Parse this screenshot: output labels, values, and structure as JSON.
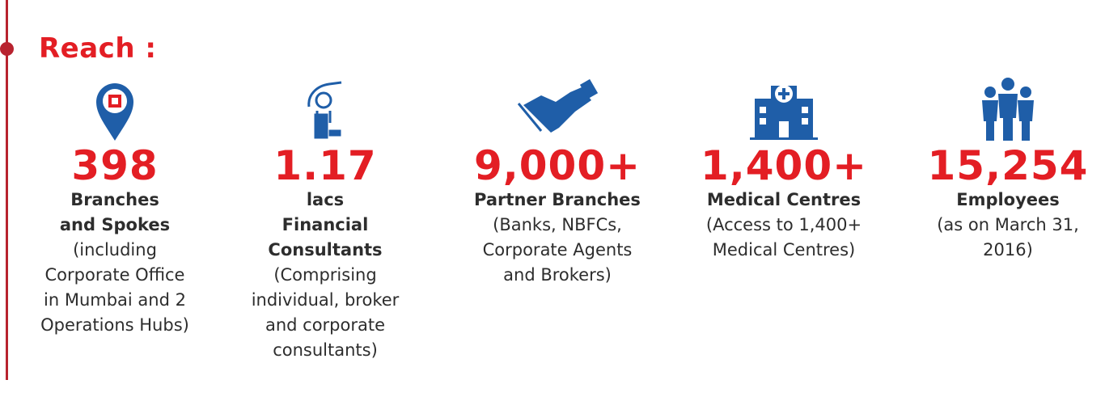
{
  "title": "Reach :",
  "items": [
    {
      "value": "398",
      "label": [
        "Branches",
        "and Spokes"
      ],
      "note": [
        "(including",
        "Corporate Office",
        "in Mumbai and 2",
        "Operations Hubs)"
      ]
    },
    {
      "value": "1.17",
      "label": [
        "lacs",
        "Financial",
        "Consultants"
      ],
      "note": [
        "(Comprising",
        "individual, broker",
        "and corporate",
        "consultants)"
      ]
    },
    {
      "value": "9,000+",
      "label": [
        "Partner Branches"
      ],
      "note": [
        "(Banks, NBFCs,",
        "Corporate Agents",
        "and Brokers)"
      ]
    },
    {
      "value": "1,400+",
      "label": [
        "Medical Centres"
      ],
      "note": [
        "(Access to 1,400+",
        "Medical Centres)"
      ]
    },
    {
      "value": "15,254",
      "label": [
        "Employees"
      ],
      "note": [
        "(as on March 31,",
        "2016)"
      ]
    }
  ]
}
